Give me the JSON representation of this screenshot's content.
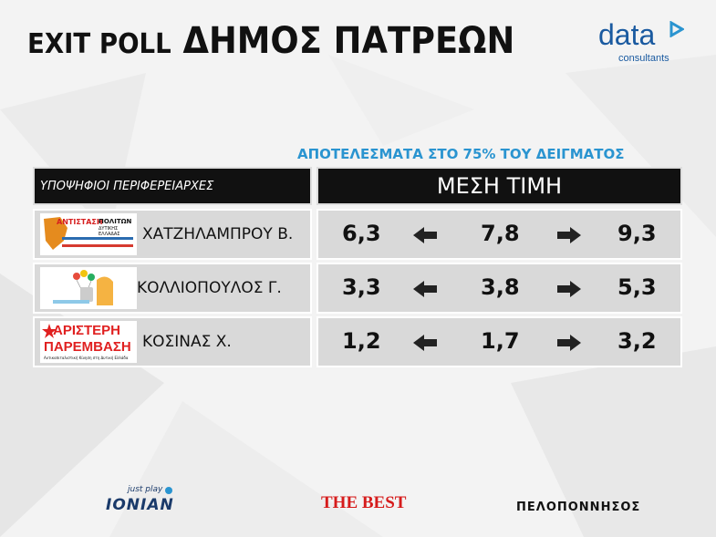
{
  "title": {
    "part1": "EXIT POLL",
    "part2": "ΔΗΜΟΣ ΠΑΤΡΕΩΝ"
  },
  "brand": {
    "word": "data",
    "sub": "consultants",
    "color": "#1a5aa0"
  },
  "subtitle": "ΑΠΟΤΕΛΕΣΜΑΤΑ ΣΤΟ 75% ΤΟΥ ΔΕΙΓΜΑΤΟΣ",
  "header": {
    "left": "ΥΠΟΨΗΦΙΟΙ ΠΕΡΙΦΕΡΕΙΑΡΧΕΣ",
    "right": "ΜΕΣΗ ΤΙΜΗ"
  },
  "candidates": [
    {
      "name": "ΧΑΤΖΗΛΑΜΠΡΟΥ Β.",
      "logo": "antistasi-politon-logo",
      "logo_text_1": "ΑΝΤΙΣΤΑΣΗ",
      "logo_text_2": "ΠΟΛΙΤΩΝ",
      "logo_text_3": "ΔΥΤΙΚΗΣ ΕΛΛΑΔΑΣ",
      "low": "6,3",
      "mid": "7,8",
      "high": "9,3"
    },
    {
      "name": "ΚΟΛΛΙΟΠΟΥΛΟΣ Γ.",
      "logo": "balloons-logo",
      "low": "3,3",
      "mid": "3,8",
      "high": "5,3"
    },
    {
      "name": "ΚΟΣΙΝΑΣ Χ.",
      "logo": "aristeri-paremvasi-logo",
      "logo_text_1": "ΑΡΙΣΤΕΡΗ",
      "logo_text_2": "ΠΑΡΕΜΒΑΣΗ",
      "logo_text_3": "Αντικαπιταλιστική Κίνηση στη Δυτική Ελλάδα",
      "low": "1,2",
      "mid": "1,7",
      "high": "3,2"
    }
  ],
  "chart_data": {
    "type": "table",
    "columns": [
      "ΥΠΟΨΗΦΙΟΙ ΠΕΡΙΦΕΡΕΙΑΡΧΕΣ",
      "ΜΕΣΗ ΤΙΜΗ"
    ],
    "rows": [
      {
        "candidate": "ΧΑΤΖΗΛΑΜΠΡΟΥ Β.",
        "low": 6.3,
        "mid": 7.8,
        "high": 9.3
      },
      {
        "candidate": "ΚΟΛΛΙΟΠΟΥΛΟΣ Γ.",
        "low": 3.3,
        "mid": 3.8,
        "high": 5.3
      },
      {
        "candidate": "ΚΟΣΙΝΑΣ Χ.",
        "low": 1.2,
        "mid": 1.7,
        "high": 3.2
      }
    ]
  },
  "footer": {
    "ionian_small": "just play",
    "ionian": "IONIAN",
    "thebest": "THE BEST",
    "peloponnisos": "ΠΕΛΟΠΟΝΝΗΣΟΣ"
  },
  "colors": {
    "accent": "#2a94d0",
    "header_bg": "#111111",
    "row_bg": "#d9d9d9",
    "red": "#e02020"
  }
}
